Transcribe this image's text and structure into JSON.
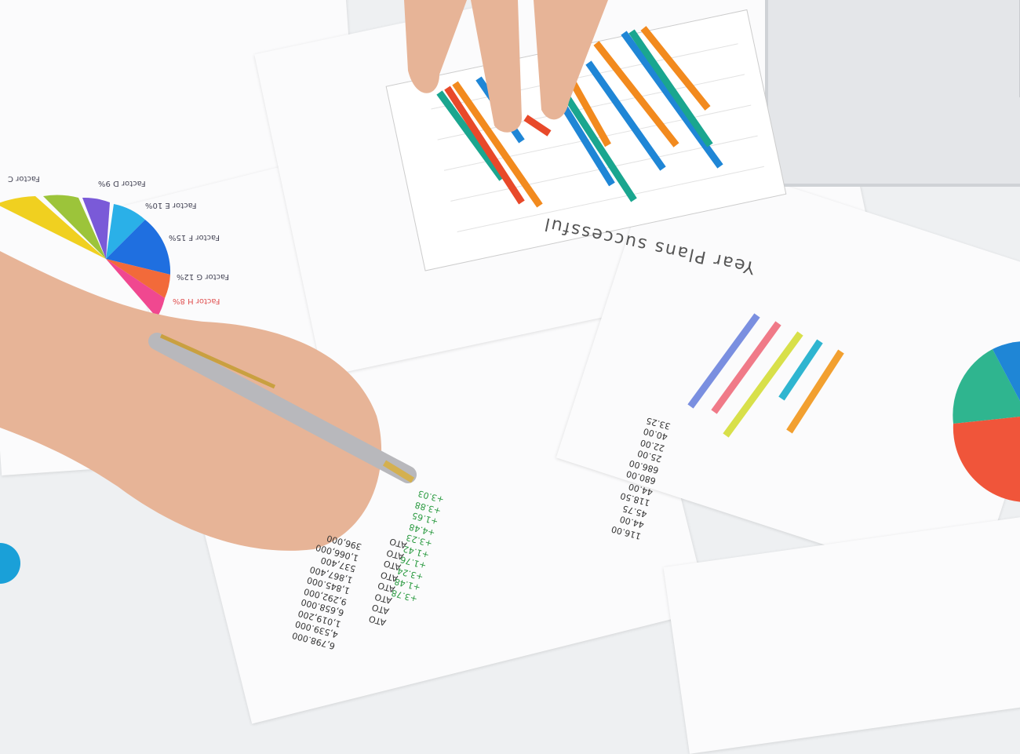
{
  "headline": "Year Plans successful",
  "pie_legend": [
    {
      "label": "Factor C",
      "value": ""
    },
    {
      "label": "Factor D",
      "value": "9%"
    },
    {
      "label": "Factor E",
      "value": "10%"
    },
    {
      "label": "Factor F",
      "value": "15%"
    },
    {
      "label": "Factor G",
      "value": "12%"
    },
    {
      "label": "Factor H",
      "value": "8%"
    }
  ],
  "number_columns": {
    "green": "+3.78\n+1.48\n+3.24\n+1.76\n+1.42\n+3.23\n+4.48\n+1.65\n+3.88\n+3.03",
    "labels": "ATO\nATO\nATO\nATO\nATO\nATO\nATO\nATO",
    "values": "6,798.000\n4,539.000\n1,019,200\n6,658.000\n9,292,000\n1,845.000\n1,867,400\n537,400\n1,066,000\n396,000",
    "right": "116.00\n44.00\n45.75\n118.50\n44.00\n680.00\n686.00\n25.00\n22.00\n40.00\n33.25"
  },
  "colors": {
    "teal": "#1aa68f",
    "orange": "#f28a1e",
    "red": "#e8492a",
    "blue": "#1f86d6",
    "pie_green": "#2fb58f",
    "pie_red": "#f0553a"
  }
}
